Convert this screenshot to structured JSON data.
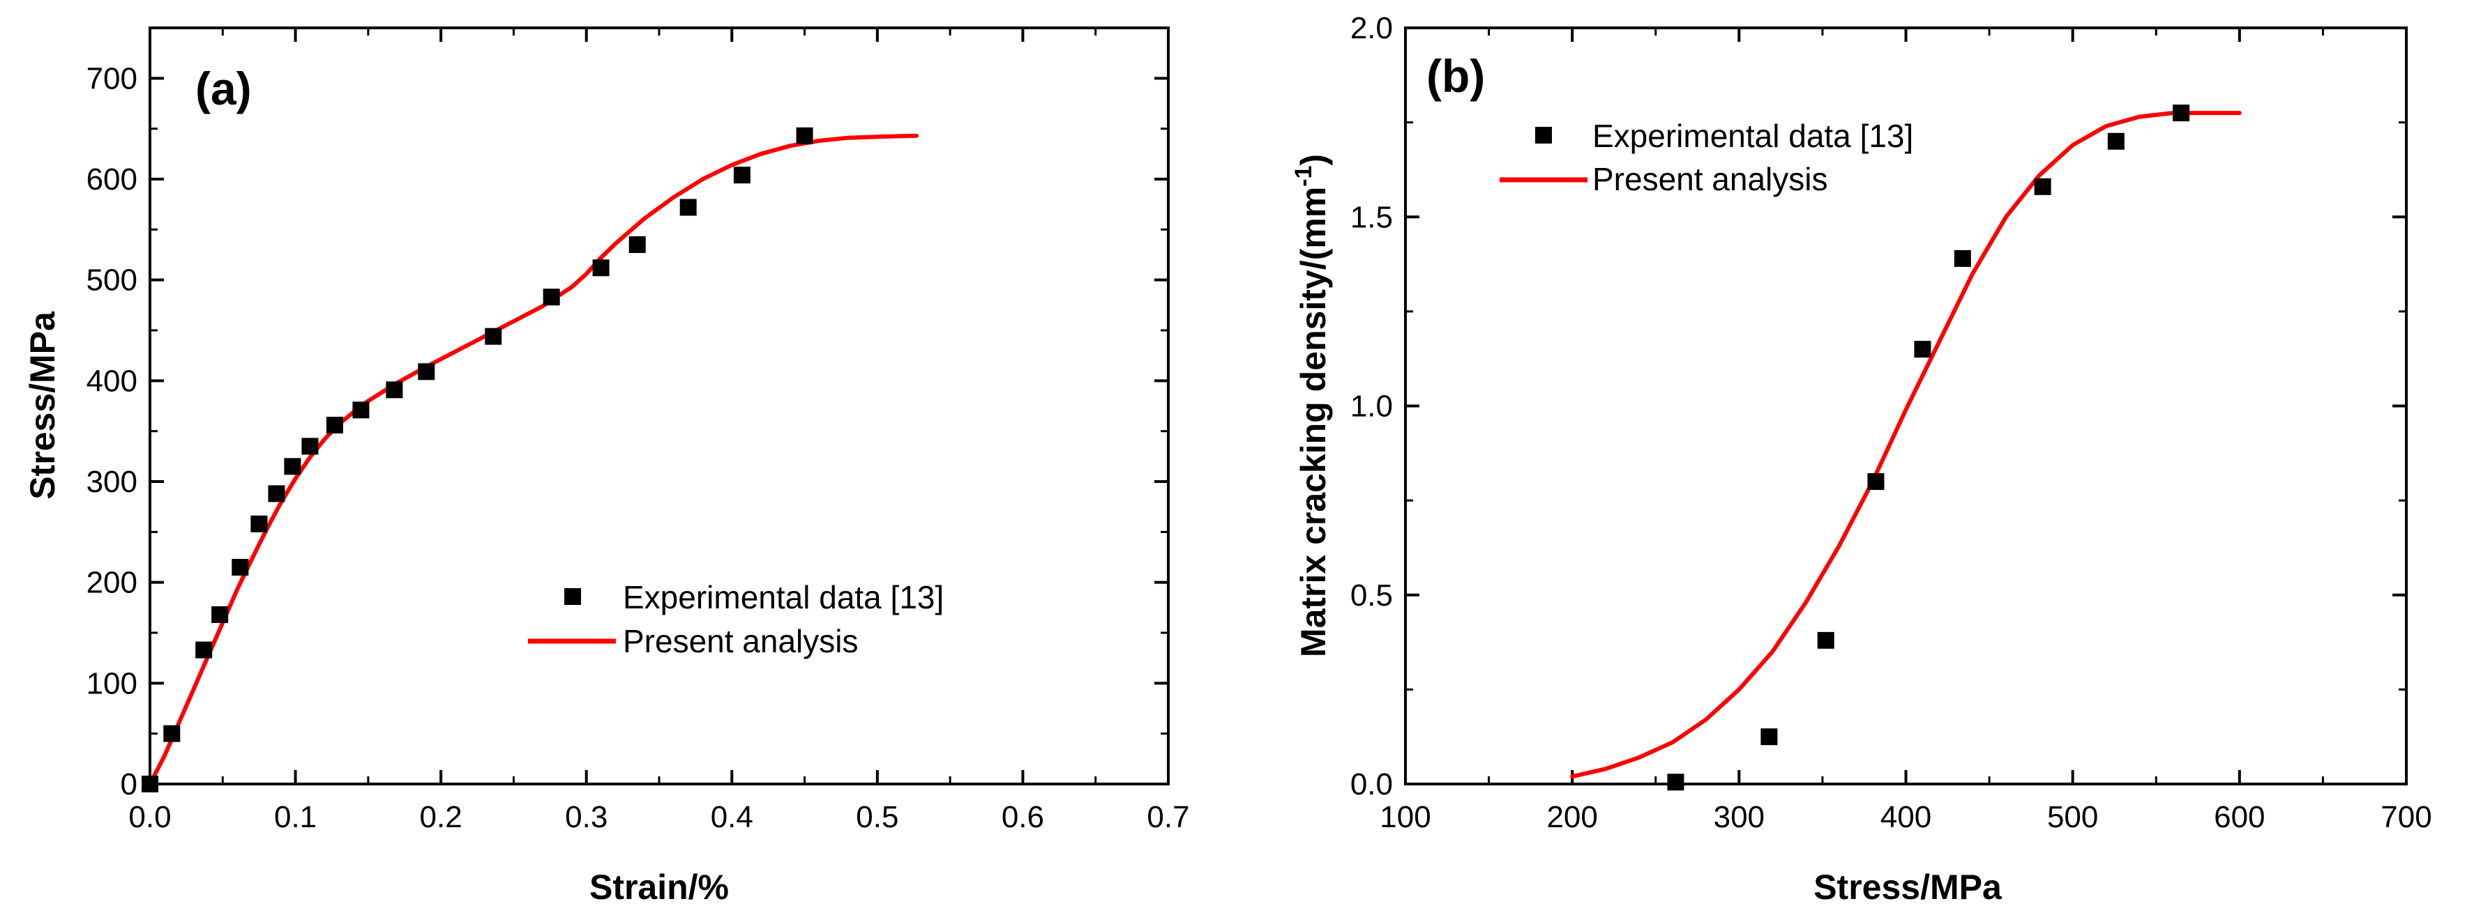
{
  "chart_data": [
    {
      "type": "scatter",
      "panel_label": "(a)",
      "title": "",
      "xlabel": "Strain/%",
      "ylabel": "Stress/MPa",
      "xlim": [
        0,
        0.7
      ],
      "ylim": [
        0,
        750
      ],
      "xticks": [
        0.0,
        0.1,
        0.2,
        0.3,
        0.4,
        0.5,
        0.6,
        0.7
      ],
      "xtick_labels": [
        "0.0",
        "0.1",
        "0.2",
        "0.3",
        "0.4",
        "0.5",
        "0.6",
        "0.7"
      ],
      "yticks": [
        0,
        100,
        200,
        300,
        400,
        500,
        600,
        700
      ],
      "ytick_labels": [
        "0",
        "100",
        "200",
        "300",
        "400",
        "500",
        "600",
        "700"
      ],
      "legend_position": "center-right",
      "series": [
        {
          "name": "Experimental data [13]",
          "kind": "scatter",
          "marker": "square",
          "color": "#000000",
          "x": [
            0.0,
            0.015,
            0.037,
            0.048,
            0.062,
            0.075,
            0.087,
            0.098,
            0.11,
            0.127,
            0.145,
            0.168,
            0.19,
            0.236,
            0.276,
            0.31,
            0.335,
            0.37,
            0.407,
            0.45
          ],
          "y": [
            0,
            50,
            133,
            168,
            215,
            258,
            288,
            315,
            335,
            356,
            371,
            391,
            409,
            444,
            483,
            512,
            535,
            572,
            604,
            643
          ]
        },
        {
          "name": "Present analysis",
          "kind": "line",
          "color": "#ff0000",
          "x": [
            0.0,
            0.01,
            0.02,
            0.03,
            0.04,
            0.05,
            0.06,
            0.07,
            0.08,
            0.09,
            0.1,
            0.11,
            0.12,
            0.13,
            0.14,
            0.15,
            0.17,
            0.19,
            0.21,
            0.23,
            0.25,
            0.27,
            0.29,
            0.3,
            0.31,
            0.32,
            0.34,
            0.36,
            0.38,
            0.4,
            0.42,
            0.44,
            0.46,
            0.48,
            0.5,
            0.527
          ],
          "y": [
            0,
            28,
            61,
            94,
            127,
            160,
            193,
            223,
            252,
            279,
            303,
            324,
            342,
            357,
            369,
            380,
            398,
            414,
            429,
            444,
            459,
            474,
            493,
            506,
            522,
            536,
            561,
            582,
            600,
            614,
            625,
            633,
            638,
            641,
            642,
            643
          ]
        }
      ]
    },
    {
      "type": "scatter",
      "panel_label": "(b)",
      "title": "",
      "xlabel": "Stress/MPa",
      "ylabel": "Matrix cracking density/(mm",
      "ylabel_superscript": "-1",
      "ylabel_suffix": ")",
      "xlim": [
        100,
        700
      ],
      "ylim": [
        0,
        2.0
      ],
      "xticks": [
        100,
        200,
        300,
        400,
        500,
        600,
        700
      ],
      "xtick_labels": [
        "100",
        "200",
        "300",
        "400",
        "500",
        "600",
        "700"
      ],
      "yticks": [
        0.0,
        0.5,
        1.0,
        1.5,
        2.0
      ],
      "ytick_labels": [
        "0.0",
        "0.5",
        "1.0",
        "1.5",
        "2.0"
      ],
      "legend_position": "top-left",
      "series": [
        {
          "name": "Experimental data [13]",
          "kind": "scatter",
          "marker": "square",
          "color": "#000000",
          "x": [
            262,
            318,
            352,
            382,
            410,
            434,
            482,
            526,
            565
          ],
          "y": [
            0.005,
            0.125,
            0.38,
            0.8,
            1.15,
            1.39,
            1.58,
            1.7,
            1.775
          ]
        },
        {
          "name": "Present analysis",
          "kind": "line",
          "color": "#ff0000",
          "x": [
            200,
            220,
            240,
            260,
            280,
            300,
            320,
            340,
            360,
            380,
            400,
            420,
            440,
            460,
            480,
            500,
            520,
            540,
            560,
            580,
            600
          ],
          "y": [
            0.02,
            0.04,
            0.07,
            0.11,
            0.17,
            0.25,
            0.35,
            0.48,
            0.63,
            0.8,
            0.99,
            1.17,
            1.35,
            1.5,
            1.61,
            1.69,
            1.74,
            1.765,
            1.775,
            1.775,
            1.775
          ]
        }
      ]
    }
  ]
}
